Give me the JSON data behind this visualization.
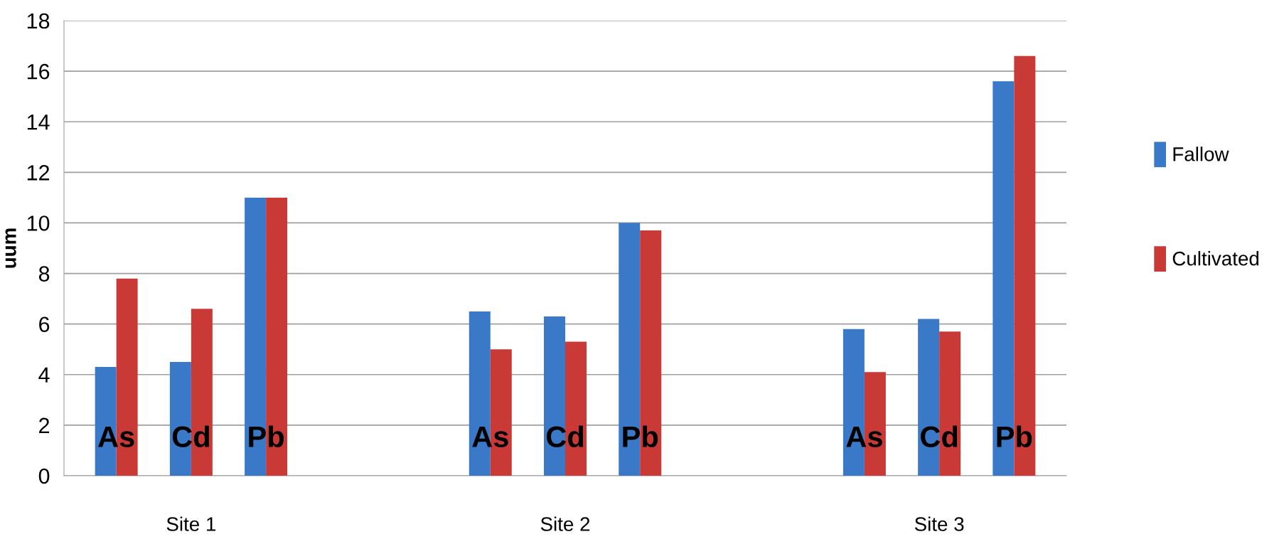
{
  "chart_data": {
    "type": "bar",
    "categories": [
      "As",
      "Cd",
      "Pb",
      null,
      null,
      "As",
      "Cd",
      "Pb",
      null,
      null,
      "As",
      "Cd",
      "Pb"
    ],
    "series": [
      {
        "name": "Fallow",
        "color": "#3a78c8",
        "values": [
          4.3,
          4.5,
          11.0,
          null,
          null,
          6.5,
          6.3,
          10.0,
          null,
          null,
          5.8,
          6.2,
          15.6
        ]
      },
      {
        "name": "Cultivated",
        "color": "#c93a36",
        "values": [
          7.8,
          6.6,
          11.0,
          null,
          null,
          5.0,
          5.3,
          9.7,
          null,
          null,
          4.1,
          5.7,
          16.6
        ]
      }
    ],
    "ylabel": "uum",
    "annotations": [
      "Site 1",
      "Site 2",
      "Site 3"
    ],
    "ylim": [
      0,
      18
    ],
    "yticks": [
      0,
      2,
      4,
      6,
      8,
      10,
      12,
      14,
      16,
      18
    ],
    "grid": "y",
    "legend": "right"
  }
}
